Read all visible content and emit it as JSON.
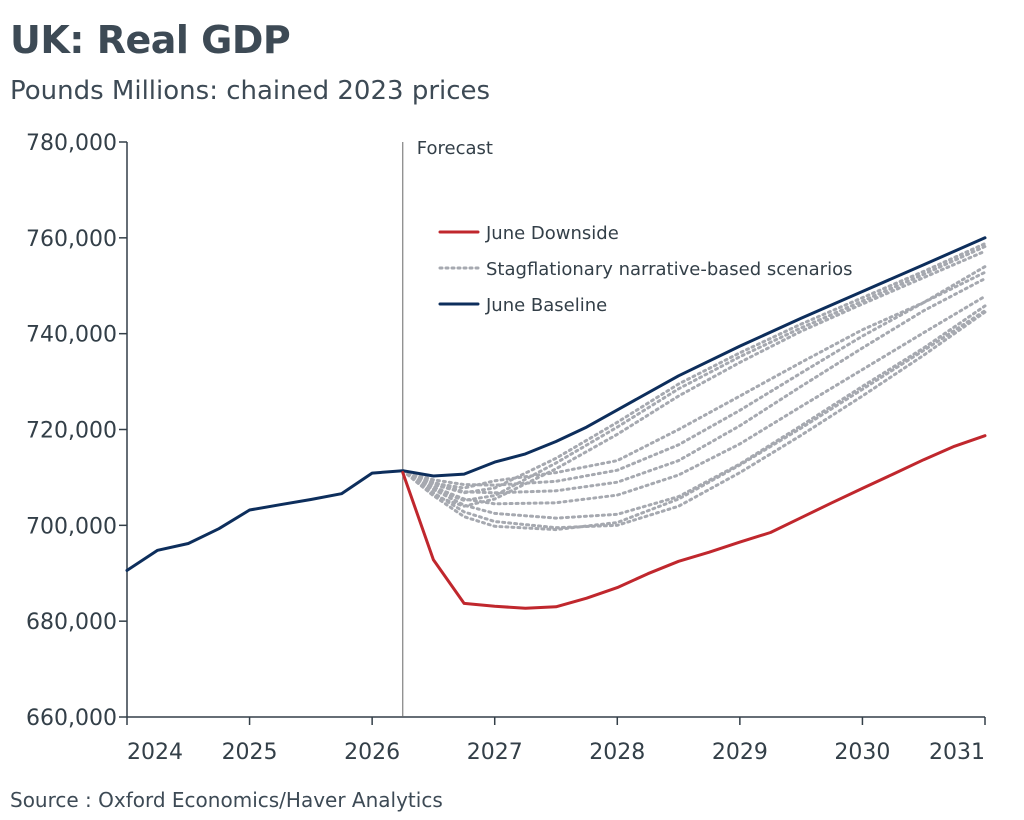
{
  "title": "UK: Real GDP",
  "subtitle": "Pounds Millions: chained 2023 prices",
  "source": "Source : Oxford Economics/Haver Analytics",
  "chart_data": {
    "type": "line",
    "title": "UK: Real GDP",
    "subtitle": "Pounds Millions: chained 2023 prices",
    "xlabel": "",
    "ylabel": "",
    "xlim": [
      2024,
      2031
    ],
    "ylim": [
      660000,
      780000
    ],
    "x_ticks": [
      "2024",
      "2025",
      "2026",
      "2027",
      "2028",
      "2029",
      "2030",
      "2031"
    ],
    "y_ticks": [
      "660,000",
      "680,000",
      "700,000",
      "720,000",
      "740,000",
      "760,000",
      "780,000"
    ],
    "grid": false,
    "legend_position": "top-center",
    "annotation": {
      "label": "Forecast",
      "x": 2026.25
    },
    "legend": [
      {
        "label": "June Downside",
        "style": "solid",
        "color": "#c0272d"
      },
      {
        "label": "Stagflationary narrative-based scenarios",
        "style": "dotted",
        "color": "#a6a9b0"
      },
      {
        "label": "June Baseline",
        "style": "solid",
        "color": "#0d2e5c"
      }
    ],
    "series": [
      {
        "name": "June Baseline",
        "color": "#0d2e5c",
        "style": "solid",
        "x": [
          2024.0,
          2024.25,
          2024.5,
          2024.75,
          2025.0,
          2025.25,
          2025.5,
          2025.75,
          2026.0,
          2026.25,
          2026.5,
          2026.75,
          2027.0,
          2027.25,
          2027.5,
          2027.75,
          2028.0,
          2028.5,
          2029.0,
          2029.5,
          2030.0,
          2030.5,
          2031.0
        ],
        "y": [
          690600,
          694800,
          696200,
          699300,
          703200,
          704300,
          705400,
          706600,
          710900,
          711400,
          710300,
          710700,
          713200,
          714900,
          717500,
          720500,
          724100,
          731200,
          737400,
          743200,
          748800,
          754400,
          760000
        ]
      },
      {
        "name": "June Downside",
        "color": "#c0272d",
        "style": "solid",
        "x": [
          2026.25,
          2026.5,
          2026.75,
          2027.0,
          2027.25,
          2027.5,
          2027.75,
          2028.0,
          2028.25,
          2028.5,
          2028.75,
          2029.0,
          2029.25,
          2029.5,
          2029.75,
          2030.0,
          2030.25,
          2030.5,
          2030.75,
          2031.0
        ],
        "y": [
          711000,
          692800,
          683700,
          683100,
          682700,
          683000,
          684800,
          687000,
          689900,
          692500,
          694400,
          696500,
          698500,
          701600,
          704700,
          707700,
          710700,
          713700,
          716500,
          718700
        ]
      },
      {
        "name": "",
        "color": "#a6a9b0",
        "style": "dotted",
        "x": [
          2026.25,
          2026.5,
          2026.75,
          2027.0,
          2027.5,
          2028.0,
          2028.5,
          2029.0,
          2029.5,
          2030.0,
          2030.5,
          2031.0
        ],
        "y": [
          711400,
          708500,
          706800,
          707800,
          714000,
          721500,
          729500,
          736000,
          742000,
          747500,
          753000,
          758800
        ]
      },
      {
        "name": "",
        "color": "#a6a9b0",
        "style": "dotted",
        "x": [
          2026.25,
          2026.5,
          2026.75,
          2027.0,
          2027.5,
          2028.0,
          2028.5,
          2029.0,
          2029.5,
          2030.0,
          2030.5,
          2031.0
        ],
        "y": [
          711400,
          707500,
          705200,
          706200,
          713000,
          720500,
          728500,
          735200,
          741200,
          746800,
          752400,
          758200
        ]
      },
      {
        "name": "",
        "color": "#a6a9b0",
        "style": "dotted",
        "x": [
          2026.25,
          2026.5,
          2026.75,
          2027.0,
          2027.5,
          2028.0,
          2028.5,
          2029.0,
          2029.5,
          2030.0,
          2030.5,
          2031.0
        ],
        "y": [
          711400,
          706200,
          704000,
          705500,
          711800,
          719000,
          727000,
          734000,
          740500,
          746200,
          751700,
          757200
        ]
      },
      {
        "name": "",
        "color": "#a6a9b0",
        "style": "dotted",
        "x": [
          2026.25,
          2026.5,
          2026.75,
          2027.0,
          2027.5,
          2028.0,
          2028.5,
          2029.0,
          2029.5,
          2030.0,
          2030.5,
          2031.0
        ],
        "y": [
          711400,
          708800,
          707800,
          709300,
          711000,
          713500,
          720000,
          727000,
          734000,
          740800,
          746500,
          752800
        ]
      },
      {
        "name": "",
        "color": "#a6a9b0",
        "style": "dotted",
        "x": [
          2026.25,
          2026.5,
          2026.75,
          2027.0,
          2027.5,
          2028.0,
          2028.5,
          2029.0,
          2029.5,
          2030.0,
          2030.5,
          2031.0
        ],
        "y": [
          711400,
          709500,
          708500,
          708400,
          709200,
          711500,
          716800,
          724000,
          731800,
          739500,
          746500,
          754000
        ]
      },
      {
        "name": "",
        "color": "#a6a9b0",
        "style": "dotted",
        "x": [
          2026.25,
          2026.5,
          2026.75,
          2027.0,
          2027.5,
          2028.0,
          2028.5,
          2029.0,
          2029.5,
          2030.0,
          2030.5,
          2031.0
        ],
        "y": [
          711400,
          709000,
          707000,
          706800,
          707200,
          709000,
          713500,
          720800,
          729000,
          737000,
          744800,
          751500
        ]
      },
      {
        "name": "",
        "color": "#a6a9b0",
        "style": "dotted",
        "x": [
          2026.25,
          2026.5,
          2026.75,
          2027.0,
          2027.5,
          2028.0,
          2028.5,
          2029.0,
          2029.5,
          2030.0,
          2030.5,
          2031.0
        ],
        "y": [
          711400,
          708000,
          705500,
          704500,
          704700,
          706300,
          710500,
          717000,
          724800,
          732500,
          740200,
          747800
        ]
      },
      {
        "name": "",
        "color": "#a6a9b0",
        "style": "dotted",
        "x": [
          2026.25,
          2026.5,
          2026.75,
          2027.0,
          2027.5,
          2028.0,
          2028.5,
          2029.0,
          2029.5,
          2030.0,
          2030.5,
          2031.0
        ],
        "y": [
          711400,
          707500,
          704200,
          702500,
          701500,
          702300,
          706000,
          712800,
          720800,
          729000,
          737000,
          745800
        ]
      },
      {
        "name": "",
        "color": "#a6a9b0",
        "style": "dotted",
        "x": [
          2026.25,
          2026.5,
          2026.75,
          2027.0,
          2027.5,
          2028.0,
          2028.5,
          2029.0,
          2029.5,
          2030.0,
          2030.5,
          2031.0
        ],
        "y": [
          711400,
          706800,
          702800,
          700800,
          699500,
          700000,
          704000,
          711000,
          718800,
          727000,
          735500,
          744500
        ]
      },
      {
        "name": "",
        "color": "#a6a9b0",
        "style": "dotted",
        "x": [
          2026.25,
          2026.5,
          2026.75,
          2027.0,
          2027.5,
          2028.0,
          2028.5,
          2029.0,
          2029.5,
          2030.0,
          2030.5,
          2031.0
        ],
        "y": [
          711400,
          706200,
          701800,
          699800,
          699100,
          700600,
          705500,
          712600,
          720300,
          728400,
          736500,
          744800
        ]
      }
    ]
  }
}
